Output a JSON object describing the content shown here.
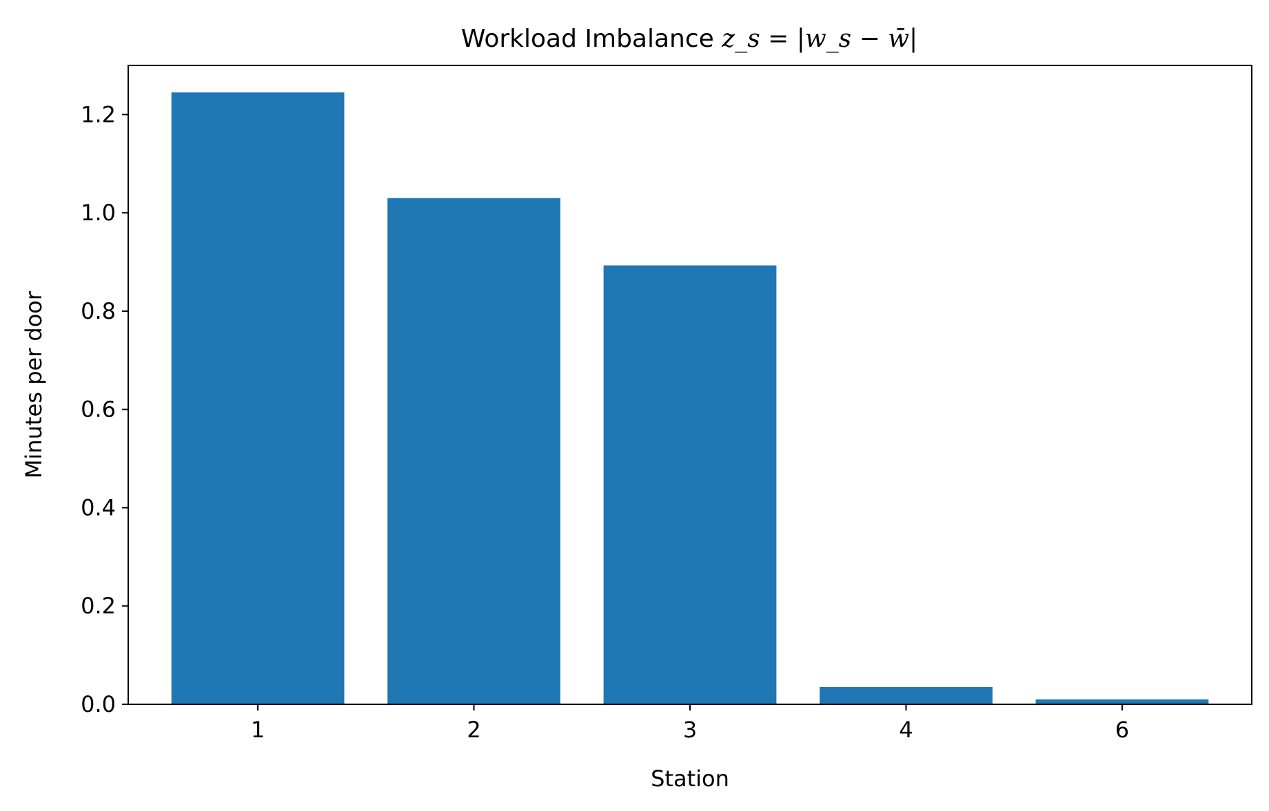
{
  "chart_data": {
    "type": "bar",
    "title_prefix": "Workload Imbalance ",
    "title_math": "z_s = |w_s − w̄|",
    "xlabel": "Station",
    "ylabel": "Minutes per door",
    "categories": [
      "1",
      "2",
      "3",
      "4",
      "6"
    ],
    "values": [
      1.245,
      1.03,
      0.893,
      0.035,
      0.01
    ],
    "ylim": [
      0,
      1.3
    ],
    "yticks": [
      "0.0",
      "0.2",
      "0.4",
      "0.6",
      "0.8",
      "1.0",
      "1.2"
    ],
    "grid": false,
    "legend": "none",
    "bar_color": "#1f77b4"
  }
}
